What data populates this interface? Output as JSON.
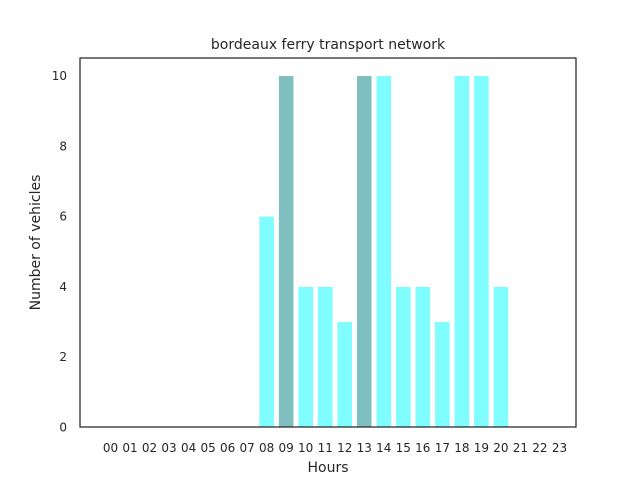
{
  "chart_data": {
    "type": "bar",
    "title": "bordeaux ferry transport network",
    "xlabel": "Hours",
    "ylabel": "Number of vehicles",
    "ylim": [
      0,
      10.5
    ],
    "yticks": [
      0,
      2,
      4,
      6,
      8,
      10
    ],
    "grid": false,
    "legend": "none",
    "categories": [
      "00",
      "01",
      "02",
      "03",
      "04",
      "05",
      "06",
      "07",
      "08",
      "09",
      "10",
      "11",
      "12",
      "13",
      "14",
      "15",
      "16",
      "17",
      "18",
      "19",
      "20",
      "21",
      "22",
      "23"
    ],
    "values": [
      0,
      0,
      0,
      0,
      0,
      0,
      0,
      0,
      6,
      10,
      4,
      4,
      3,
      10,
      10,
      4,
      4,
      3,
      10,
      10,
      4,
      0,
      0,
      0
    ],
    "highlighted": [
      "09",
      "13"
    ],
    "colors": {
      "bar": "#7ffdff",
      "highlight": "#7fbfbf",
      "bar_edge": "#ffffff",
      "axis": "#262626",
      "background": "#ffffff"
    }
  }
}
